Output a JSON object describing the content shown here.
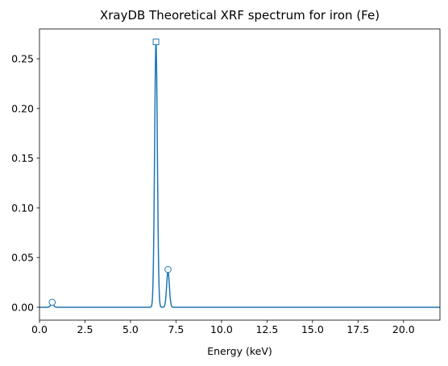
{
  "chart_data": {
    "type": "line",
    "title": "XrayDB Theoretical XRF spectrum for iron (Fe)",
    "xlabel": "Energy (keV)",
    "ylabel": "",
    "xlim": [
      0,
      22.0
    ],
    "ylim": [
      -0.013,
      0.28
    ],
    "x_ticks": [
      0.0,
      2.5,
      5.0,
      7.5,
      10.0,
      12.5,
      15.0,
      17.5,
      20.0
    ],
    "x_tick_labels": [
      "0.0",
      "2.5",
      "5.0",
      "7.5",
      "10.0",
      "12.5",
      "15.0",
      "17.5",
      "20.0"
    ],
    "y_ticks": [
      0.0,
      0.05,
      0.1,
      0.15,
      0.2,
      0.25
    ],
    "y_tick_labels": [
      "0.00",
      "0.05",
      "0.10",
      "0.15",
      "0.20",
      "0.25"
    ],
    "grid": false,
    "legend": "none",
    "color": "#1f77b4",
    "series": [
      {
        "peaks": [
          {
            "center": 0.7,
            "height": 0.0045
          },
          {
            "center": 6.4,
            "height": 0.267
          },
          {
            "center": 7.06,
            "height": 0.036
          }
        ],
        "sigma": 0.075,
        "x_range": [
          0.0,
          22.0
        ]
      }
    ],
    "markers": [
      {
        "x": 0.7,
        "y": 0.005,
        "shape": "circle"
      },
      {
        "x": 6.4,
        "y": 0.267,
        "shape": "square"
      },
      {
        "x": 7.06,
        "y": 0.038,
        "shape": "circle"
      }
    ]
  }
}
